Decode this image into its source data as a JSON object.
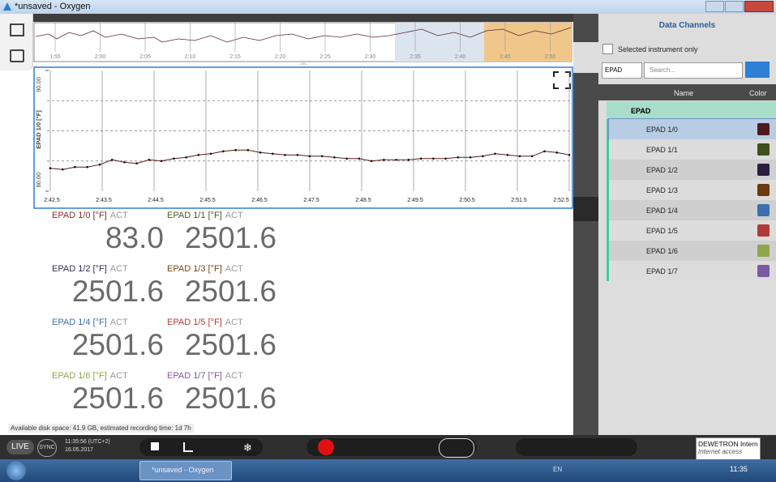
{
  "window": {
    "title": "*unsaved - Oxygen"
  },
  "overview": {
    "xticks": [
      "1:55",
      "2:00",
      "2:05",
      "2:10",
      "2:15",
      "2:20",
      "2:25",
      "2:30",
      "2:35",
      "2:40",
      "2:45",
      "2:50"
    ]
  },
  "chart_data": {
    "type": "line",
    "ylabel": "EPAD 1/0 [°F]",
    "ylim": [
      80,
      90
    ],
    "yticks": [
      {
        "value": 80,
        "label": "80.00"
      },
      {
        "value": 90,
        "label": "90.00"
      }
    ],
    "grid_values": [
      82.5,
      85,
      87.5
    ],
    "xticks": [
      "2:42.5",
      "2:43.5",
      "2:44.5",
      "2:45.5",
      "2:46.5",
      "2:47.5",
      "2:48.5",
      "2:49.5",
      "2:50.5",
      "2:51.5",
      "2:52.5"
    ],
    "color": "#5a1a1a",
    "values": [
      81.9,
      81.8,
      82.0,
      82.0,
      82.2,
      82.6,
      82.4,
      82.3,
      82.6,
      82.5,
      82.7,
      82.8,
      83.0,
      83.1,
      83.3,
      83.4,
      83.4,
      83.2,
      83.1,
      83.0,
      83.0,
      82.9,
      82.9,
      82.8,
      82.7,
      82.7,
      82.5,
      82.6,
      82.6,
      82.6,
      82.7,
      82.7,
      82.7,
      82.8,
      82.8,
      82.9,
      83.1,
      83.0,
      82.9,
      82.9,
      83.3,
      83.2,
      83.0
    ]
  },
  "displays": [
    {
      "channel": "EPAD 1/0 [°F]",
      "mode": "ACT",
      "value": "83.0",
      "color": "#8a2c2c"
    },
    {
      "channel": "EPAD 1/1 [°F]",
      "mode": "ACT",
      "value": "2501.6",
      "color": "#4a5a22"
    },
    {
      "channel": "EPAD 1/2 [°F]",
      "mode": "ACT",
      "value": "2501.6",
      "color": "#3a2c55"
    },
    {
      "channel": "EPAD 1/3 [°F]",
      "mode": "ACT",
      "value": "2501.6",
      "color": "#7a4418"
    },
    {
      "channel": "EPAD 1/4 [°F]",
      "mode": "ACT",
      "value": "2501.6",
      "color": "#3b6fb0"
    },
    {
      "channel": "EPAD 1/5 [°F]",
      "mode": "ACT",
      "value": "2501.6",
      "color": "#b03a35"
    },
    {
      "channel": "EPAD 1/6 [°F]",
      "mode": "ACT",
      "value": "2501.6",
      "color": "#8ea64a"
    },
    {
      "channel": "EPAD 1/7 [°F]",
      "mode": "ACT",
      "value": "2501.6",
      "color": "#7a5aa0"
    }
  ],
  "status": {
    "disk": "Available disk space: 41.9 GB, estimated recording time: 1d 7h"
  },
  "toolbar": {
    "live": "LIVE",
    "sync": "SYNC",
    "time": "11:35:56 (UTC+2)",
    "date": "16.05.2017"
  },
  "tooltip": {
    "title": "DEWETRON Intern",
    "subtitle": "Internet access"
  },
  "taskbar": {
    "window": "*unsaved - Oxygen",
    "lang": "EN",
    "clock": "11:35"
  },
  "panel": {
    "title": "Data Channels",
    "checkbox": "Selected instrument only",
    "instrument": "EPAD",
    "search": "Search...",
    "columns": [
      "Name",
      "Color"
    ],
    "group": "EPAD",
    "channels": [
      {
        "name": "EPAD 1/0",
        "color": "#4b1a1f"
      },
      {
        "name": "EPAD 1/1",
        "color": "#3f4f1e"
      },
      {
        "name": "EPAD 1/2",
        "color": "#2b1e3e"
      },
      {
        "name": "EPAD 1/3",
        "color": "#6b3a12"
      },
      {
        "name": "EPAD 1/4",
        "color": "#3b6fb0"
      },
      {
        "name": "EPAD 1/5",
        "color": "#b03a35"
      },
      {
        "name": "EPAD 1/6",
        "color": "#8ea64a"
      },
      {
        "name": "EPAD 1/7",
        "color": "#7a5aa0"
      }
    ]
  }
}
